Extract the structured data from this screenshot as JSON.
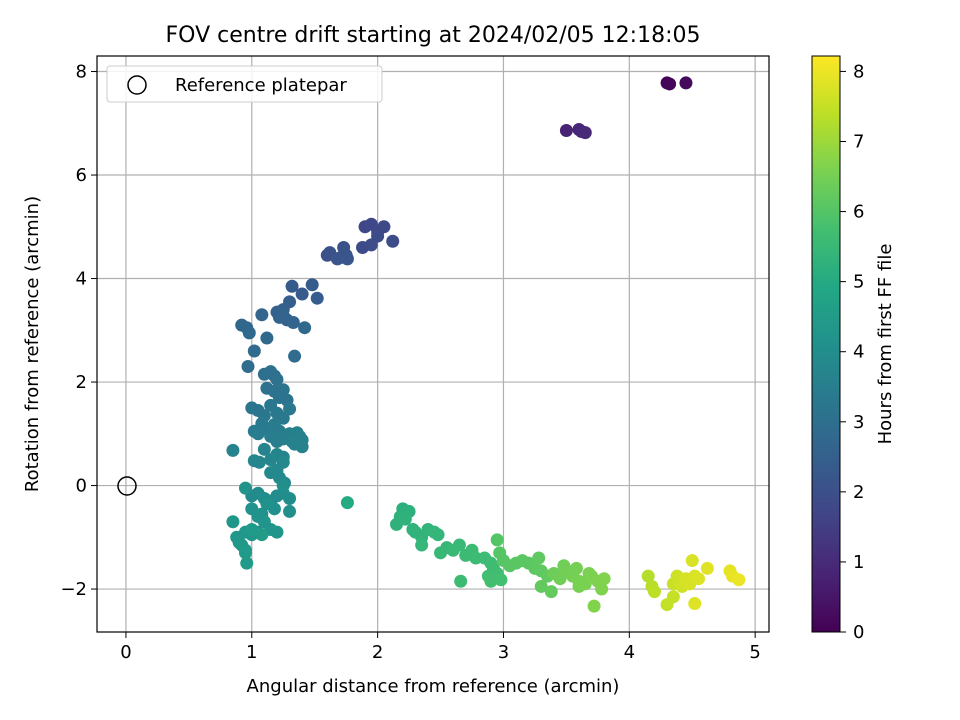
{
  "chart_data": {
    "type": "scatter",
    "title": "FOV centre drift starting at 2024/02/05 12:18:05",
    "xlabel": "Angular distance from reference (arcmin)",
    "ylabel": "Rotation from reference (arcmin)",
    "xlim": [
      -0.23,
      5.11
    ],
    "ylim": [
      -2.83,
      8.3
    ],
    "xticks": [
      0,
      1,
      2,
      3,
      4,
      5
    ],
    "yticks": [
      -2,
      0,
      2,
      4,
      6,
      8
    ],
    "xtick_labels": [
      "0",
      "1",
      "2",
      "3",
      "4",
      "5"
    ],
    "ytick_labels": [
      "−2",
      "0",
      "2",
      "4",
      "6",
      "8"
    ],
    "grid": true,
    "legend": {
      "position": "top-left",
      "entries": [
        "Reference platepar"
      ]
    },
    "reference_point": {
      "x": 0,
      "y": 0,
      "label": "Reference platepar"
    },
    "colorbar": {
      "label": "Hours from first FF file",
      "range": [
        0,
        8.22
      ],
      "ticks": [
        0,
        1,
        2,
        3,
        4,
        5,
        6,
        7,
        8
      ],
      "tick_labels": [
        "0",
        "1",
        "2",
        "3",
        "4",
        "5",
        "6",
        "7",
        "8"
      ],
      "colormap": "viridis"
    },
    "points": [
      [
        4.3,
        7.78,
        0.1
      ],
      [
        4.32,
        7.76,
        0.12
      ],
      [
        4.45,
        7.78,
        0.2
      ],
      [
        3.5,
        6.86,
        0.8
      ],
      [
        3.6,
        6.88,
        0.85
      ],
      [
        3.62,
        6.84,
        0.9
      ],
      [
        3.65,
        6.82,
        0.95
      ],
      [
        1.9,
        5.0,
        1.75
      ],
      [
        1.95,
        5.05,
        1.78
      ],
      [
        2.0,
        4.9,
        1.8
      ],
      [
        2.05,
        5.0,
        1.82
      ],
      [
        1.88,
        4.6,
        1.85
      ],
      [
        1.95,
        4.65,
        1.88
      ],
      [
        2.0,
        4.82,
        1.9
      ],
      [
        2.12,
        4.72,
        1.93
      ],
      [
        1.6,
        4.45,
        2.0
      ],
      [
        1.62,
        4.5,
        2.05
      ],
      [
        1.7,
        4.4,
        2.08
      ],
      [
        1.75,
        4.45,
        2.1
      ],
      [
        1.73,
        4.6,
        2.12
      ],
      [
        1.76,
        4.38,
        2.15
      ],
      [
        1.68,
        4.38,
        2.17
      ],
      [
        1.32,
        3.85,
        2.3
      ],
      [
        1.4,
        3.7,
        2.35
      ],
      [
        1.48,
        3.88,
        2.38
      ],
      [
        1.52,
        3.62,
        2.4
      ],
      [
        1.3,
        3.55,
        2.45
      ],
      [
        1.25,
        3.4,
        2.5
      ],
      [
        1.2,
        3.35,
        2.55
      ],
      [
        1.22,
        3.25,
        2.58
      ],
      [
        1.28,
        3.2,
        2.6
      ],
      [
        1.33,
        3.15,
        2.62
      ],
      [
        1.25,
        3.28,
        2.64
      ],
      [
        1.08,
        3.3,
        2.65
      ],
      [
        0.92,
        3.1,
        2.7
      ],
      [
        0.96,
        3.05,
        2.72
      ],
      [
        0.98,
        2.95,
        2.75
      ],
      [
        1.42,
        3.05,
        2.78
      ],
      [
        1.12,
        2.85,
        2.8
      ],
      [
        1.02,
        2.6,
        2.85
      ],
      [
        1.34,
        2.5,
        2.88
      ],
      [
        0.97,
        2.3,
        2.9
      ],
      [
        1.1,
        2.15,
        3.0
      ],
      [
        1.15,
        2.2,
        3.02
      ],
      [
        1.18,
        2.12,
        3.04
      ],
      [
        1.2,
        2.05,
        3.06
      ],
      [
        1.12,
        1.88,
        3.08
      ],
      [
        1.18,
        1.82,
        3.1
      ],
      [
        1.25,
        1.85,
        3.12
      ],
      [
        1.22,
        1.7,
        3.14
      ],
      [
        1.28,
        1.65,
        3.16
      ],
      [
        1.0,
        1.5,
        3.2
      ],
      [
        1.05,
        1.45,
        3.22
      ],
      [
        1.1,
        1.35,
        3.24
      ],
      [
        1.15,
        1.55,
        3.26
      ],
      [
        1.2,
        1.4,
        3.28
      ],
      [
        1.25,
        1.3,
        3.3
      ],
      [
        1.3,
        1.48,
        3.32
      ],
      [
        1.08,
        1.2,
        3.34
      ],
      [
        1.12,
        1.1,
        3.36
      ],
      [
        1.18,
        1.18,
        3.38
      ],
      [
        1.22,
        1.05,
        3.4
      ],
      [
        1.02,
        1.05,
        3.42
      ],
      [
        1.05,
        1.0,
        3.44
      ],
      [
        1.15,
        0.95,
        3.46
      ],
      [
        1.2,
        0.85,
        3.48
      ],
      [
        1.25,
        0.9,
        3.5
      ],
      [
        1.3,
        1.0,
        3.52
      ],
      [
        1.32,
        0.85,
        3.54
      ],
      [
        1.38,
        0.95,
        3.56
      ],
      [
        1.4,
        0.88,
        3.58
      ],
      [
        1.36,
        1.02,
        3.6
      ],
      [
        1.4,
        0.75,
        3.62
      ],
      [
        1.34,
        0.8,
        3.64
      ],
      [
        0.85,
        0.68,
        3.66
      ],
      [
        1.1,
        0.7,
        3.68
      ],
      [
        1.2,
        0.6,
        3.7
      ],
      [
        1.25,
        0.55,
        3.72
      ],
      [
        1.02,
        0.48,
        3.74
      ],
      [
        1.06,
        0.45,
        3.76
      ],
      [
        1.15,
        0.5,
        3.78
      ],
      [
        1.25,
        0.45,
        3.8
      ],
      [
        1.2,
        0.3,
        3.82
      ],
      [
        1.15,
        0.25,
        3.84
      ],
      [
        1.22,
        0.15,
        3.86
      ],
      [
        1.26,
        0.05,
        3.88
      ],
      [
        1.0,
        -0.2,
        3.9
      ],
      [
        1.05,
        -0.15,
        3.92
      ],
      [
        1.1,
        -0.25,
        3.94
      ],
      [
        1.15,
        -0.3,
        3.96
      ],
      [
        1.2,
        -0.2,
        3.98
      ],
      [
        1.25,
        -0.15,
        4.0
      ],
      [
        1.3,
        -0.25,
        4.02
      ],
      [
        1.3,
        -0.5,
        4.04
      ],
      [
        1.25,
        0.0,
        4.06
      ],
      [
        1.18,
        -0.45,
        4.08
      ],
      [
        1.12,
        -0.35,
        4.1
      ],
      [
        1.08,
        -0.55,
        4.12
      ],
      [
        1.0,
        -0.45,
        4.14
      ],
      [
        1.05,
        -0.6,
        4.16
      ],
      [
        0.95,
        -0.05,
        4.18
      ],
      [
        1.1,
        -0.7,
        4.2
      ],
      [
        1.15,
        -0.85,
        4.22
      ],
      [
        1.2,
        -0.9,
        4.24
      ],
      [
        1.05,
        -0.9,
        4.26
      ],
      [
        1.0,
        -0.95,
        4.28
      ],
      [
        0.95,
        -0.9,
        4.3
      ],
      [
        0.85,
        -0.7,
        4.32
      ],
      [
        0.88,
        -1.0,
        4.34
      ],
      [
        0.9,
        -1.1,
        4.36
      ],
      [
        0.92,
        -1.15,
        4.38
      ],
      [
        0.95,
        -1.25,
        4.4
      ],
      [
        0.95,
        -1.3,
        4.42
      ],
      [
        0.96,
        -1.5,
        4.44
      ],
      [
        1.0,
        -0.85,
        4.46
      ],
      [
        1.08,
        -0.95,
        4.48
      ],
      [
        1.76,
        -0.33,
        5.0
      ],
      [
        2.2,
        -0.45,
        5.2
      ],
      [
        2.25,
        -0.5,
        5.22
      ],
      [
        2.18,
        -0.6,
        5.24
      ],
      [
        2.15,
        -0.75,
        5.26
      ],
      [
        2.22,
        -0.65,
        5.28
      ],
      [
        2.28,
        -0.85,
        5.3
      ],
      [
        2.3,
        -0.9,
        5.32
      ],
      [
        2.35,
        -1.0,
        5.34
      ],
      [
        2.4,
        -0.85,
        5.36
      ],
      [
        2.45,
        -0.9,
        5.38
      ],
      [
        2.48,
        -0.95,
        5.4
      ],
      [
        2.35,
        -1.15,
        5.42
      ],
      [
        2.55,
        -1.2,
        5.44
      ],
      [
        2.5,
        -1.3,
        5.46
      ],
      [
        2.6,
        -1.25,
        5.5
      ],
      [
        2.65,
        -1.15,
        5.52
      ],
      [
        2.7,
        -1.35,
        5.54
      ],
      [
        2.75,
        -1.25,
        5.56
      ],
      [
        2.78,
        -1.4,
        5.58
      ],
      [
        2.85,
        -1.4,
        5.6
      ],
      [
        2.66,
        -1.85,
        5.62
      ],
      [
        2.9,
        -1.5,
        5.64
      ],
      [
        2.92,
        -1.6,
        5.66
      ],
      [
        2.95,
        -1.7,
        5.68
      ],
      [
        2.88,
        -1.75,
        5.7
      ],
      [
        2.9,
        -1.85,
        5.72
      ],
      [
        2.98,
        -1.82,
        5.74
      ],
      [
        2.95,
        -1.05,
        6.0
      ],
      [
        2.97,
        -1.3,
        6.02
      ],
      [
        3.0,
        -1.45,
        6.04
      ],
      [
        3.05,
        -1.55,
        6.06
      ],
      [
        3.1,
        -1.5,
        6.08
      ],
      [
        3.15,
        -1.45,
        6.1
      ],
      [
        3.2,
        -1.5,
        6.12
      ],
      [
        3.25,
        -1.6,
        6.14
      ],
      [
        3.28,
        -1.4,
        6.16
      ],
      [
        3.3,
        -1.65,
        6.18
      ],
      [
        3.35,
        -1.75,
        6.2
      ],
      [
        3.3,
        -1.95,
        6.22
      ],
      [
        3.38,
        -2.05,
        6.24
      ],
      [
        3.4,
        -1.7,
        6.4
      ],
      [
        3.45,
        -1.8,
        6.42
      ],
      [
        3.48,
        -1.55,
        6.44
      ],
      [
        3.5,
        -1.65,
        6.46
      ],
      [
        3.55,
        -1.75,
        6.48
      ],
      [
        3.58,
        -1.6,
        6.5
      ],
      [
        3.6,
        -1.85,
        6.52
      ],
      [
        3.6,
        -1.95,
        6.54
      ],
      [
        3.65,
        -1.9,
        6.56
      ],
      [
        3.68,
        -1.7,
        6.58
      ],
      [
        3.7,
        -1.75,
        6.6
      ],
      [
        3.75,
        -1.85,
        6.62
      ],
      [
        3.78,
        -2.0,
        6.64
      ],
      [
        3.8,
        -1.8,
        6.66
      ],
      [
        3.72,
        -2.33,
        6.68
      ],
      [
        4.15,
        -1.75,
        7.3
      ],
      [
        4.18,
        -1.95,
        7.35
      ],
      [
        4.2,
        -2.05,
        7.4
      ],
      [
        4.3,
        -2.3,
        7.45
      ],
      [
        4.35,
        -2.15,
        7.5
      ],
      [
        4.35,
        -1.9,
        7.55
      ],
      [
        4.38,
        -1.75,
        7.6
      ],
      [
        4.4,
        -1.85,
        7.62
      ],
      [
        4.42,
        -1.95,
        7.65
      ],
      [
        4.45,
        -1.8,
        7.7
      ],
      [
        4.48,
        -1.9,
        7.72
      ],
      [
        4.5,
        -1.45,
        7.75
      ],
      [
        4.52,
        -1.75,
        7.78
      ],
      [
        4.55,
        -1.8,
        7.8
      ],
      [
        4.52,
        -2.28,
        7.82
      ],
      [
        4.62,
        -1.6,
        7.85
      ],
      [
        4.8,
        -1.65,
        7.9
      ],
      [
        4.82,
        -1.75,
        7.95
      ],
      [
        4.87,
        -1.82,
        8.0
      ]
    ]
  }
}
